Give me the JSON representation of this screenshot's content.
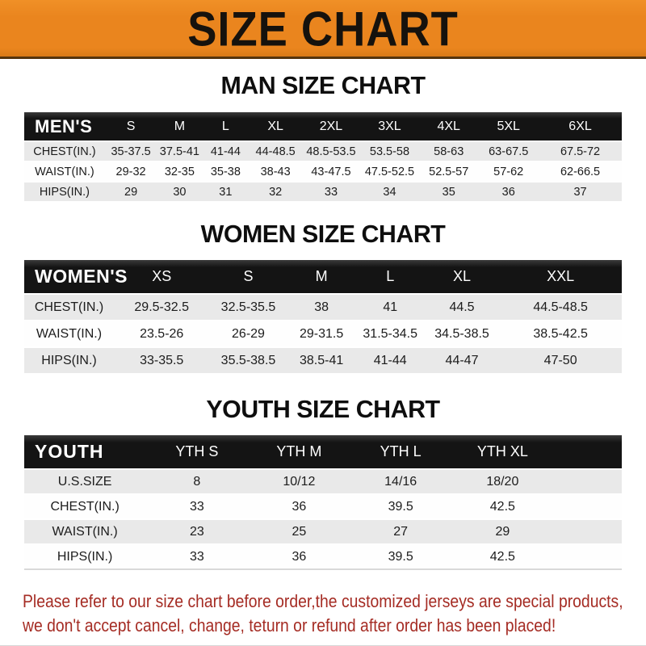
{
  "banner": {
    "title": "SIZE CHART"
  },
  "sections": [
    {
      "heading": "MAN SIZE CHART",
      "header_label": "MEN'S",
      "columns": [
        "S",
        "M",
        "L",
        "XL",
        "2XL",
        "3XL",
        "4XL",
        "5XL",
        "6XL"
      ],
      "rows": [
        {
          "label": "CHEST(IN.)",
          "values": [
            "35-37.5",
            "37.5-41",
            "41-44",
            "44-48.5",
            "48.5-53.5",
            "53.5-58",
            "58-63",
            "63-67.5",
            "67.5-72"
          ]
        },
        {
          "label": "WAIST(IN.)",
          "values": [
            "29-32",
            "32-35",
            "35-38",
            "38-43",
            "43-47.5",
            "47.5-52.5",
            "52.5-57",
            "57-62",
            "62-66.5"
          ]
        },
        {
          "label": "HIPS(IN.)",
          "values": [
            "29",
            "30",
            "31",
            "32",
            "33",
            "34",
            "35",
            "36",
            "37"
          ]
        }
      ]
    },
    {
      "heading": "WOMEN SIZE CHART",
      "header_label": "WOMEN'S",
      "columns": [
        "XS",
        "S",
        "M",
        "L",
        "XL",
        "XXL"
      ],
      "rows": [
        {
          "label": "CHEST(IN.)",
          "values": [
            "29.5-32.5",
            "32.5-35.5",
            "38",
            "41",
            "44.5",
            "44.5-48.5"
          ]
        },
        {
          "label": "WAIST(IN.)",
          "values": [
            "23.5-26",
            "26-29",
            "29-31.5",
            "31.5-34.5",
            "34.5-38.5",
            "38.5-42.5"
          ]
        },
        {
          "label": "HIPS(IN.)",
          "values": [
            "33-35.5",
            "35.5-38.5",
            "38.5-41",
            "41-44",
            "44-47",
            "47-50"
          ]
        }
      ]
    },
    {
      "heading": "YOUTH SIZE CHART",
      "header_label": "YOUTH",
      "columns": [
        "YTH S",
        "YTH M",
        "YTH L",
        "YTH XL"
      ],
      "rows": [
        {
          "label": "U.S.SIZE",
          "values": [
            "8",
            "10/12",
            "14/16",
            "18/20"
          ]
        },
        {
          "label": "CHEST(IN.)",
          "values": [
            "33",
            "36",
            "39.5",
            "42.5"
          ]
        },
        {
          "label": "WAIST(IN.)",
          "values": [
            "23",
            "25",
            "27",
            "29"
          ]
        },
        {
          "label": "HIPS(IN.)",
          "values": [
            "33",
            "36",
            "39.5",
            "42.5"
          ]
        }
      ]
    }
  ],
  "footer": {
    "line1": "Please refer to our size chart before order,the customized jerseys are special products,",
    "line2": "we don't accept cancel, change, teturn or refund after order has been placed!"
  },
  "colors": {
    "banner_orange": "#EA851E",
    "banner_text": "#16120D",
    "header_bar_black": "#141414",
    "header_bar_text": "#FFFFFF",
    "row_stripe_gray": "#E9E9E9",
    "row_white": "#FEFEFE",
    "body_text": "#1C1C1C",
    "footer_red": "#A52C24",
    "bottom_rule_gray": "#D7D7D7"
  }
}
